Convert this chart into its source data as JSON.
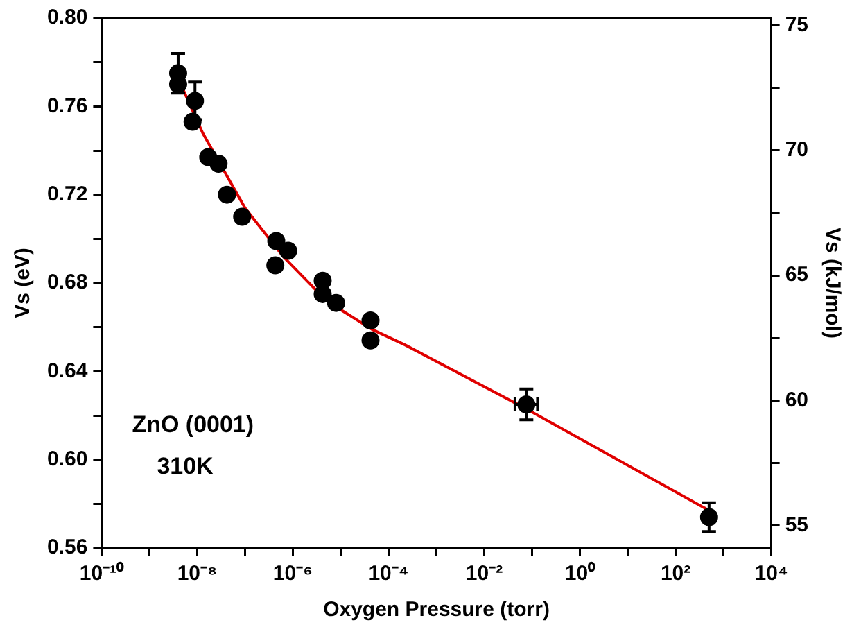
{
  "chart_data": {
    "type": "scatter",
    "xlabel": "Oxygen Pressure (torr)",
    "ylabel": "Vs (eV)",
    "y2label": "Vs (kJ/mol)",
    "log": "x",
    "marker": "circle",
    "legend": false,
    "grid": false,
    "xlim": [
      1e-10,
      10000.0
    ],
    "xticks": [
      {
        "value": 1e-10,
        "label": "10⁻¹⁰"
      },
      {
        "value": 1e-09,
        "label": null
      },
      {
        "value": 1e-08,
        "label": "10⁻⁸"
      },
      {
        "value": 1e-07,
        "label": null
      },
      {
        "value": 1e-06,
        "label": "10⁻⁶"
      },
      {
        "value": 1e-05,
        "label": null
      },
      {
        "value": 0.0001,
        "label": "10⁻⁴"
      },
      {
        "value": 0.001,
        "label": null
      },
      {
        "value": 0.01,
        "label": "10⁻²"
      },
      {
        "value": 0.1,
        "label": null
      },
      {
        "value": 1,
        "label": "10⁰"
      },
      {
        "value": 10,
        "label": null
      },
      {
        "value": 100,
        "label": "10²"
      },
      {
        "value": 1000,
        "label": null
      },
      {
        "value": 10000,
        "label": "10⁴"
      }
    ],
    "ylim": [
      0.56,
      0.8
    ],
    "yticks": [
      {
        "value": 0.56,
        "label": "0.56"
      },
      {
        "value": 0.58,
        "label": null
      },
      {
        "value": 0.6,
        "label": "0.60"
      },
      {
        "value": 0.62,
        "label": null
      },
      {
        "value": 0.64,
        "label": "0.64"
      },
      {
        "value": 0.66,
        "label": null
      },
      {
        "value": 0.68,
        "label": "0.68"
      },
      {
        "value": 0.7,
        "label": null
      },
      {
        "value": 0.72,
        "label": "0.72"
      },
      {
        "value": 0.74,
        "label": null
      },
      {
        "value": 0.76,
        "label": "0.76"
      },
      {
        "value": 0.78,
        "label": null
      },
      {
        "value": 0.8,
        "label": "0.80"
      }
    ],
    "y2lim": [
      54.1,
      75.3
    ],
    "y2ticks": [
      55,
      {
        "value": 57.5,
        "label": null
      },
      60,
      {
        "value": 62.5,
        "label": null
      },
      65,
      {
        "value": 67.5,
        "label": null
      },
      70,
      {
        "value": 72.5,
        "label": null
      },
      75
    ],
    "annotations": [
      "ZnO (0001)",
      "310K"
    ],
    "series": [
      {
        "color": "#000000",
        "x": [
          4e-09,
          4e-09,
          9e-09,
          8e-09,
          1.7e-08,
          2.8e-08,
          4.2e-08,
          8.7e-08,
          4.5e-07,
          4.3e-07,
          8e-07,
          4.2e-06,
          4.2e-06,
          8e-06,
          4.2e-05,
          4.2e-05,
          0.076,
          500
        ],
        "values": [
          0.775,
          0.77,
          0.7625,
          0.753,
          0.737,
          0.734,
          0.72,
          0.71,
          0.699,
          0.688,
          0.6946,
          0.681,
          0.675,
          0.671,
          0.663,
          0.654,
          0.625,
          0.574
        ],
        "errors": [
          0.009,
          null,
          0.0085,
          null,
          null,
          null,
          null,
          null,
          null,
          null,
          null,
          null,
          null,
          null,
          null,
          null,
          0.007,
          0.0065
        ],
        "xerrors": [
          null,
          null,
          null,
          null,
          null,
          null,
          null,
          null,
          null,
          null,
          null,
          null,
          null,
          null,
          null,
          null,
          [
            0.044,
            0.13
          ],
          null
        ]
      },
      {
        "type": "line",
        "color": "#e00000",
        "marker": "none",
        "x": [
          5e-09,
          1.3e-08,
          1e-07,
          6.3e-07,
          5e-06,
          4.5e-05,
          0.00022,
          0.076,
          500
        ],
        "values": [
          0.768,
          0.748,
          0.714,
          0.692,
          0.672,
          0.659,
          0.652,
          0.623,
          0.577
        ]
      }
    ]
  }
}
